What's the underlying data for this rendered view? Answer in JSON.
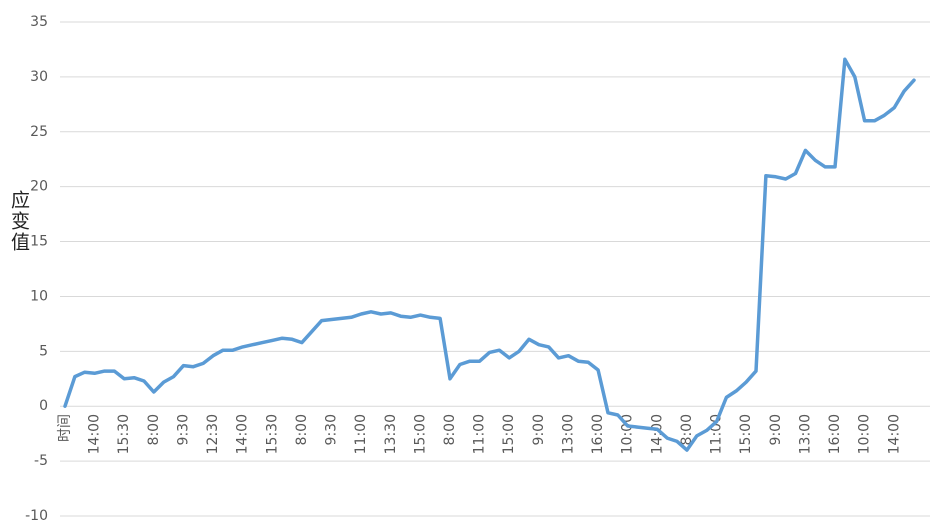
{
  "chart_data": {
    "type": "line",
    "y_label": "应变值",
    "categories": [
      "时间",
      null,
      null,
      "14:00",
      null,
      null,
      "15:30",
      null,
      null,
      "8:00",
      null,
      null,
      "9:30",
      null,
      null,
      "12:30",
      null,
      null,
      "14:00",
      null,
      null,
      "15:30",
      null,
      null,
      "8:00",
      null,
      null,
      "9:30",
      null,
      null,
      "11:00",
      null,
      null,
      "13:30",
      null,
      null,
      "15:00",
      null,
      null,
      "8:00",
      null,
      null,
      "11:00",
      null,
      null,
      "15:00",
      null,
      null,
      "9:00",
      null,
      null,
      "13:00",
      null,
      null,
      "16:00",
      null,
      null,
      "10:00",
      null,
      null,
      "14:00",
      null,
      null,
      "8:00",
      null,
      null,
      "11:00",
      null,
      null,
      "15:00",
      null,
      null,
      "9:00",
      null,
      null,
      "13:00",
      null,
      null,
      "16:00",
      null,
      null,
      "10:00",
      null,
      null,
      "14:00",
      null,
      null
    ],
    "values": [
      0,
      2.7,
      3.1,
      3.0,
      3.2,
      3.2,
      2.5,
      2.6,
      2.3,
      1.3,
      2.2,
      2.7,
      3.7,
      3.6,
      3.9,
      4.6,
      5.1,
      5.1,
      5.4,
      5.6,
      5.8,
      6.0,
      6.2,
      6.1,
      5.8,
      6.8,
      7.8,
      7.9,
      8.0,
      8.1,
      8.4,
      8.6,
      8.4,
      8.5,
      8.2,
      8.1,
      8.3,
      8.1,
      8.0,
      2.5,
      3.8,
      4.1,
      4.1,
      4.9,
      5.1,
      4.4,
      5.0,
      6.1,
      5.6,
      5.4,
      4.4,
      4.6,
      4.1,
      4.0,
      3.3,
      -0.6,
      -0.8,
      -1.8,
      -1.9,
      -2.0,
      -2.1,
      -2.9,
      -3.2,
      -4.0,
      -2.7,
      -2.2,
      -1.4,
      0.8,
      1.4,
      2.2,
      3.2,
      21.0,
      20.9,
      20.7,
      21.2,
      23.3,
      22.4,
      21.8,
      21.8,
      31.6,
      30.0,
      26.0,
      26.0,
      26.5,
      27.2,
      28.7,
      29.7
    ],
    "color": "#5b9bd5",
    "ylim": [
      -10,
      35
    ],
    "yticks": [
      -10,
      -5,
      0,
      5,
      10,
      15,
      20,
      25,
      30,
      35
    ],
    "grid": true
  }
}
